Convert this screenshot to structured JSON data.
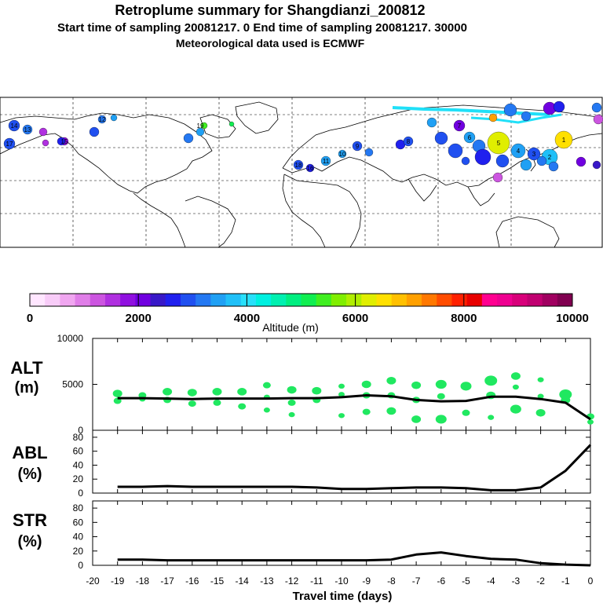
{
  "header": {
    "title": "Retroplume summary for Shangdianzi_200812",
    "sampling": "Start time of sampling 20081217.    0     End time of sampling 20081217. 30000",
    "met": "Meteorological data used is ECMWF"
  },
  "colorbar": {
    "ticks": [
      "0",
      "2000",
      "4000",
      "6000",
      "8000",
      "10000"
    ],
    "label": "Altitude  (m)",
    "colors": [
      "#ffe6ff",
      "#f8ccf8",
      "#f0a6f0",
      "#e07ee8",
      "#cc55e0",
      "#b030e0",
      "#9010e0",
      "#7000e0",
      "#3818c8",
      "#2020ee",
      "#2050f0",
      "#2478f2",
      "#20a0f4",
      "#20c0f8",
      "#28e0fa",
      "#00f0e0",
      "#00f0b0",
      "#00ee80",
      "#10ee50",
      "#40ee20",
      "#80ee00",
      "#b0ee00",
      "#e0ee00",
      "#ffe000",
      "#ffc000",
      "#ffa000",
      "#ff7800",
      "#ff4c00",
      "#ff2000",
      "#e80000",
      "#ff0090",
      "#ee0090",
      "#d8007a",
      "#c00070",
      "#a00060",
      "#800050"
    ]
  },
  "panels": {
    "alt": {
      "label1": "ALT",
      "label2": "(m)"
    },
    "abl": {
      "label1": "ABL",
      "label2": "(%)"
    },
    "str": {
      "label1": "STR",
      "label2": "(%)"
    },
    "xlabel": "Travel time (days)"
  },
  "map_labels": [
    "14",
    "13",
    "17",
    "15",
    "12",
    "19",
    "18",
    "16",
    "11",
    "10",
    "9",
    "8",
    "7",
    "6",
    "5",
    "4",
    "3",
    "2",
    "1"
  ],
  "chart_data": [
    {
      "type": "line",
      "title": "ALT",
      "ylabel": "ALT (m)",
      "xlabel": "Travel time (days)",
      "xlim": [
        -20,
        0
      ],
      "ylim": [
        0,
        10000
      ],
      "y_ticks": [
        "0",
        "5000",
        "10000"
      ],
      "x_ticks": [
        "-20",
        "-19",
        "-18",
        "-17",
        "-16",
        "-15",
        "-14",
        "-13",
        "-12",
        "-11",
        "-10",
        "-9",
        "-8",
        "-7",
        "-6",
        "-5",
        "-4",
        "-3",
        "-2",
        "-1",
        "0"
      ],
      "series": [
        {
          "name": "mean altitude",
          "x": [
            -19,
            -18,
            -17,
            -16,
            -15,
            -14,
            -13,
            -12,
            -11,
            -10,
            -9,
            -8,
            -7,
            -6,
            -5,
            -4,
            -3,
            -2,
            -1,
            0
          ],
          "y": [
            3500,
            3500,
            3450,
            3400,
            3450,
            3450,
            3450,
            3500,
            3500,
            3600,
            3800,
            3700,
            3300,
            3150,
            3200,
            3650,
            3650,
            3400,
            3000,
            1200
          ]
        }
      ],
      "scatter_x": [
        -19,
        -19,
        -18,
        -18,
        -17,
        -17,
        -16,
        -16,
        -15,
        -15,
        -14,
        -14,
        -13,
        -13,
        -13,
        -12,
        -12,
        -12,
        -11,
        -11,
        -10,
        -10,
        -10,
        -9,
        -9,
        -9,
        -8,
        -8,
        -8,
        -7,
        -7,
        -7,
        -6,
        -6,
        -6,
        -5,
        -5,
        -4,
        -4,
        -4,
        -3,
        -3,
        -3,
        -2,
        -2,
        -2,
        -1,
        -1,
        0,
        0
      ],
      "scatter_y": [
        4000,
        3200,
        3800,
        3400,
        4200,
        3300,
        4100,
        2900,
        4200,
        3000,
        4200,
        2600,
        4900,
        3600,
        2200,
        4400,
        3000,
        1700,
        4300,
        3300,
        4800,
        3900,
        1600,
        5000,
        3800,
        2000,
        5400,
        3800,
        2100,
        4900,
        3300,
        1200,
        5000,
        3700,
        1200,
        4800,
        1900,
        5400,
        3800,
        1400,
        5900,
        4700,
        2300,
        5500,
        3700,
        1900,
        3900,
        3300,
        1500,
        900
      ],
      "scatter_size": [
        6,
        5,
        5,
        4,
        6,
        5,
        6,
        5,
        6,
        5,
        6,
        5,
        5,
        4,
        4,
        6,
        5,
        4,
        6,
        5,
        4,
        4,
        4,
        6,
        5,
        5,
        6,
        5,
        6,
        6,
        5,
        6,
        7,
        5,
        7,
        7,
        5,
        8,
        6,
        4,
        6,
        4,
        7,
        4,
        4,
        6,
        8,
        6,
        5,
        4
      ]
    },
    {
      "type": "line",
      "title": "ABL",
      "ylabel": "ABL (%)",
      "xlim": [
        -20,
        0
      ],
      "ylim": [
        0,
        90
      ],
      "y_ticks": [
        "0",
        "20",
        "40",
        "60",
        "80"
      ],
      "series": [
        {
          "name": "ABL",
          "x": [
            -19,
            -18,
            -17,
            -16,
            -15,
            -14,
            -13,
            -12,
            -11,
            -10,
            -9,
            -8,
            -7,
            -6,
            -5,
            -4,
            -3,
            -2,
            -1,
            0
          ],
          "y": [
            9,
            9,
            10,
            9,
            9,
            9,
            9,
            9,
            8,
            6,
            6,
            7,
            8,
            8,
            7,
            4,
            4,
            8,
            32,
            69
          ]
        }
      ]
    },
    {
      "type": "line",
      "title": "STR",
      "ylabel": "STR (%)",
      "xlim": [
        -20,
        0
      ],
      "ylim": [
        0,
        90
      ],
      "y_ticks": [
        "0",
        "20",
        "40",
        "60",
        "80"
      ],
      "series": [
        {
          "name": "STR",
          "x": [
            -19,
            -18,
            -17,
            -16,
            -15,
            -14,
            -13,
            -12,
            -11,
            -10,
            -9,
            -8,
            -7,
            -6,
            -5,
            -4,
            -3,
            -2,
            -1,
            0
          ],
          "y": [
            8,
            8,
            7,
            7,
            7,
            7,
            7,
            7,
            7,
            7,
            7,
            8,
            15,
            18,
            13,
            9,
            8,
            3,
            1,
            0
          ]
        }
      ]
    }
  ]
}
